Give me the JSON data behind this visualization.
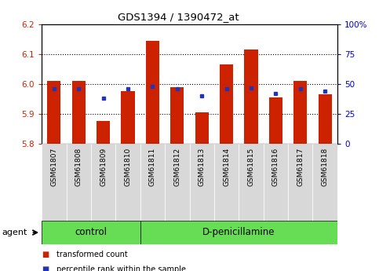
{
  "title": "GDS1394 / 1390472_at",
  "categories": [
    "GSM61807",
    "GSM61808",
    "GSM61809",
    "GSM61810",
    "GSM61811",
    "GSM61812",
    "GSM61813",
    "GSM61814",
    "GSM61815",
    "GSM61816",
    "GSM61817",
    "GSM61818"
  ],
  "red_values": [
    6.01,
    6.01,
    5.875,
    5.975,
    6.145,
    5.99,
    5.905,
    6.065,
    6.115,
    5.955,
    6.01,
    5.965
  ],
  "blue_values_pct": [
    46,
    46,
    38,
    46,
    48,
    46,
    40,
    46,
    47,
    42,
    46,
    44
  ],
  "ylim_left": [
    5.8,
    6.2
  ],
  "ylim_right": [
    0,
    100
  ],
  "yticks_left": [
    5.8,
    5.9,
    6.0,
    6.1,
    6.2
  ],
  "yticks_right": [
    0,
    25,
    50,
    75,
    100
  ],
  "ytick_labels_right": [
    "0",
    "25",
    "50",
    "75",
    "100%"
  ],
  "bar_color": "#cc2200",
  "blue_color": "#2233bb",
  "baseline": 5.8,
  "control_count": 4,
  "treatment_count": 8,
  "control_label": "control",
  "treatment_label": "D-penicillamine",
  "agent_label": "agent",
  "legend_red": "transformed count",
  "legend_blue": "percentile rank within the sample",
  "tick_label_color_left": "#cc2200",
  "tick_label_color_right": "#0000cc",
  "bg_group": "#66dd55",
  "xticklabel_bg": "#d8d8d8",
  "gridline_color": "black",
  "gridline_style": ":"
}
